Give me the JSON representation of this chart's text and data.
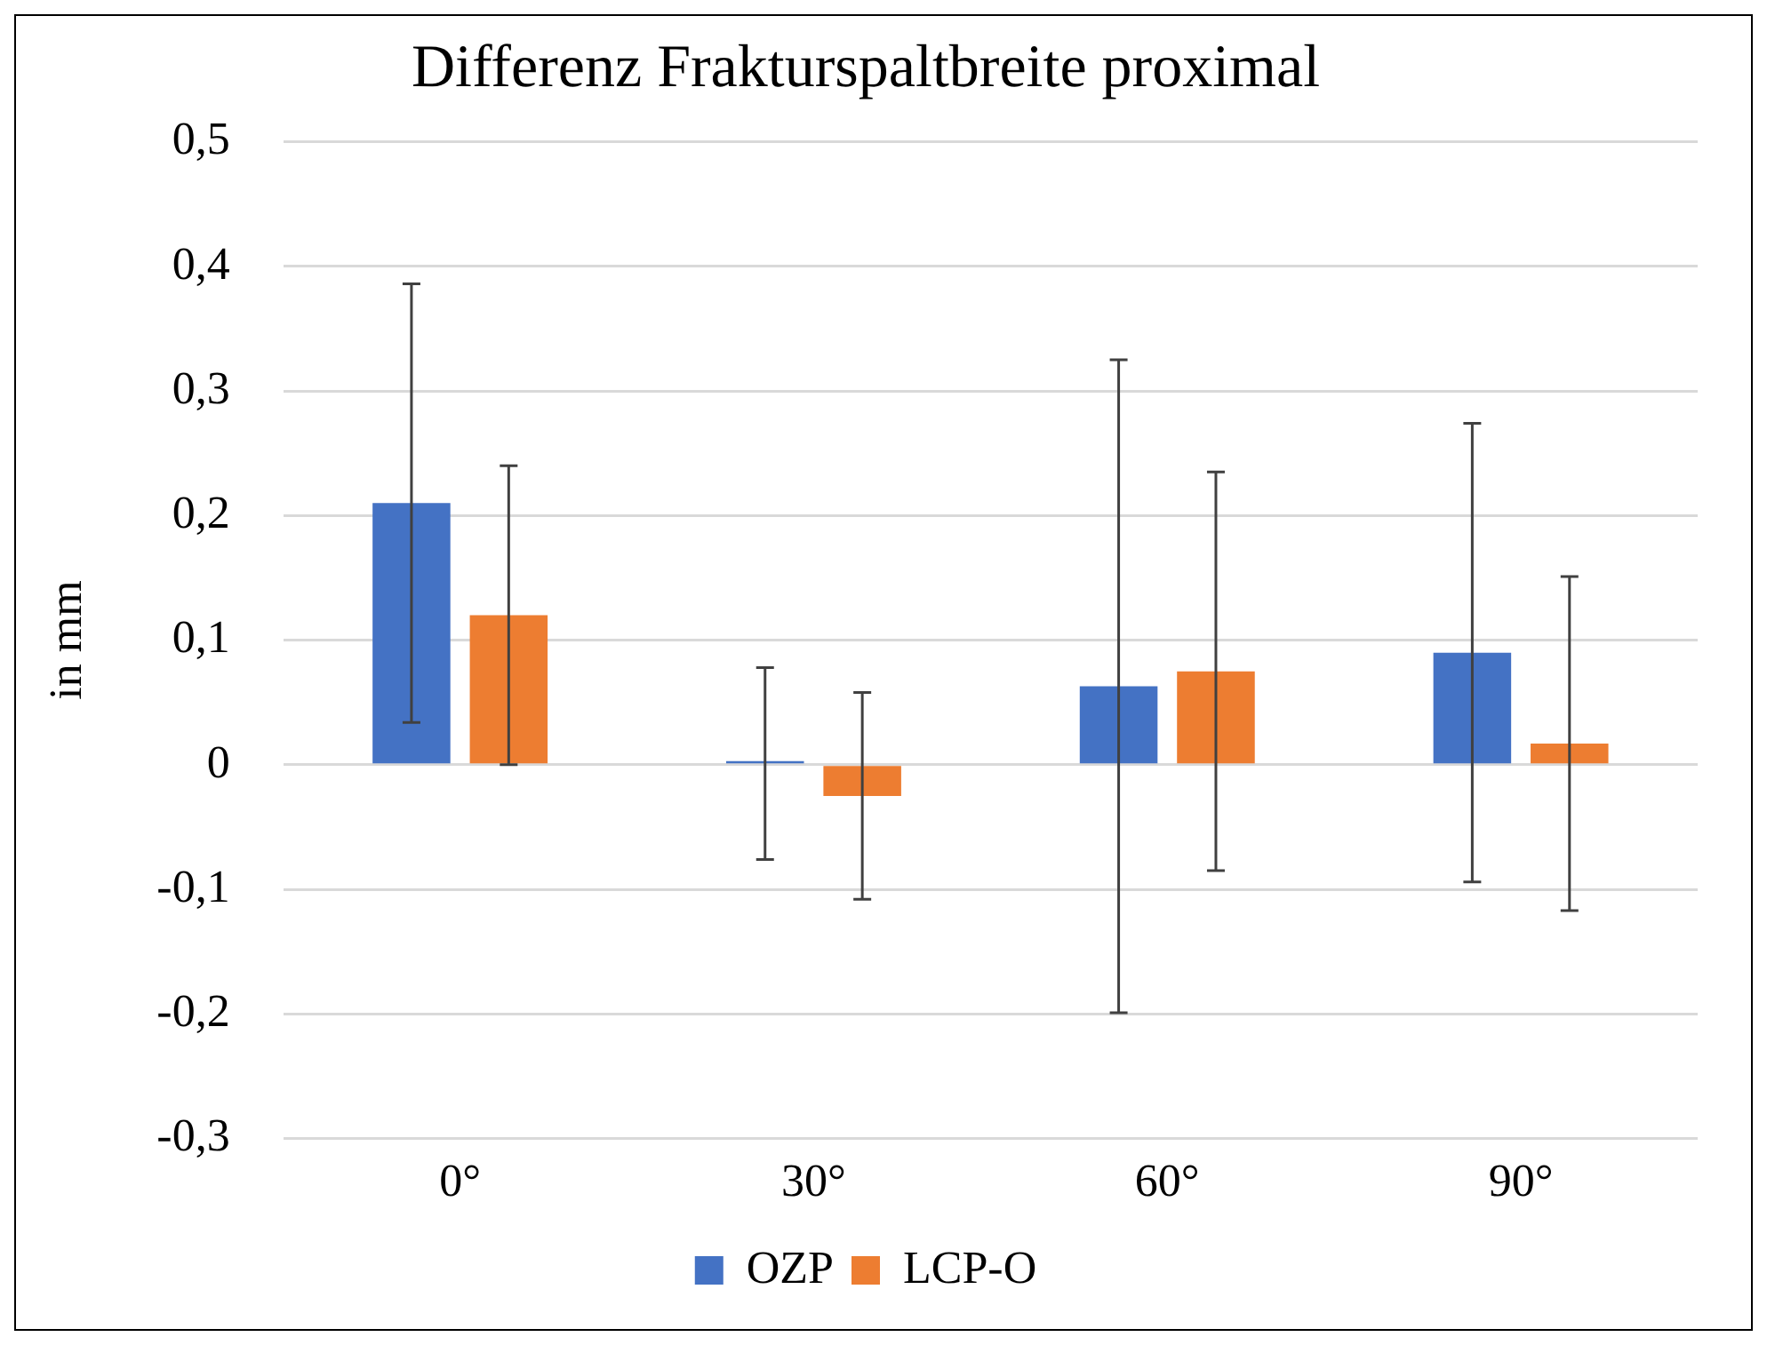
{
  "chart_data": {
    "type": "bar",
    "title": "Differenz Frakturspaltbreite proximal",
    "ylabel": "in mm",
    "categories": [
      "0°",
      "30°",
      "60°",
      "90°"
    ],
    "series": [
      {
        "name": "OZP",
        "color": "#4472c4",
        "values": [
          0.21,
          0.001,
          0.063,
          0.09
        ],
        "errors": [
          0.176,
          0.077,
          0.262,
          0.184
        ]
      },
      {
        "name": "LCP-O",
        "color": "#ed7d31",
        "values": [
          0.12,
          -0.025,
          0.075,
          0.017
        ],
        "errors": [
          0.12,
          0.083,
          0.16,
          0.134
        ]
      }
    ],
    "ylim": [
      -0.3,
      0.5
    ],
    "yticks": [
      {
        "value": -0.3,
        "label": "-0,3"
      },
      {
        "value": -0.2,
        "label": "-0,2"
      },
      {
        "value": -0.1,
        "label": "-0,1"
      },
      0,
      {
        "value": 0.1,
        "label": "0,1"
      },
      {
        "value": 0.2,
        "label": "0,2"
      },
      {
        "value": 0.3,
        "label": "0,3"
      },
      {
        "value": 0.4,
        "label": "0,4"
      },
      {
        "value": 0.5,
        "label": "0,5"
      }
    ],
    "grid": "y",
    "legend": "bottom"
  }
}
